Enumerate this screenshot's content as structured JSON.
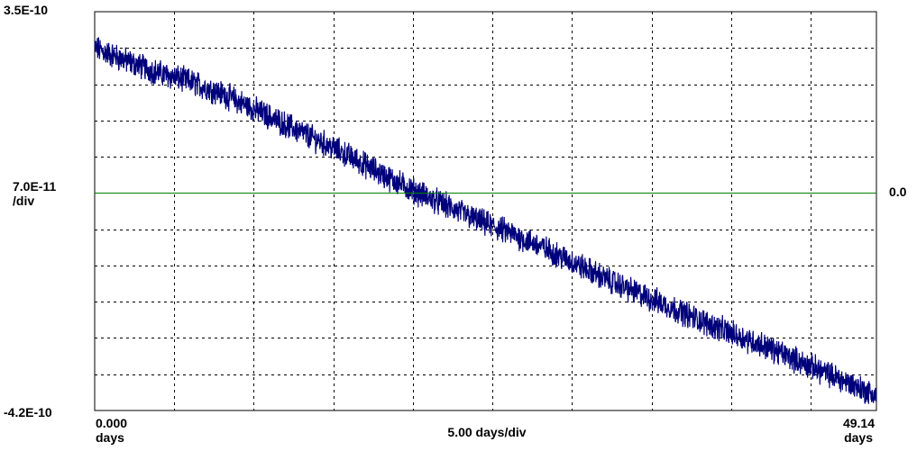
{
  "chart_data": {
    "type": "line",
    "y_axis": {
      "top_label": "3.5E-10",
      "scale_label": "7.0E-11",
      "scale_unit": "/div",
      "bottom_label": "-4.2E-10",
      "zero_label": "0.0",
      "ylim": [
        -4.2e-10,
        3.5e-10
      ],
      "per_div": 7e-11,
      "divisions": 11
    },
    "x_axis": {
      "start_value": "0.000",
      "start_unit": "days",
      "scale_label": "5.00 days/div",
      "end_value": "49.14",
      "end_unit": "days",
      "xlim": [
        0,
        49.14
      ],
      "per_div": 5.0
    },
    "grid": true,
    "grid_style": "dashed",
    "reference_line": {
      "y": 0.0,
      "color": "#008000"
    },
    "series": [
      {
        "color": "#00007b",
        "noise_band": 2.1e-11,
        "x": [
          0,
          2,
          4,
          6,
          8,
          10,
          12,
          14,
          16,
          18,
          20,
          22,
          24,
          26,
          28,
          30,
          32,
          34,
          36,
          38,
          40,
          42,
          44,
          46,
          48,
          49.14
        ],
        "y": [
          2.8e-10,
          2.55e-10,
          2.32e-10,
          2.15e-10,
          1.92e-10,
          1.62e-10,
          1.32e-10,
          1.02e-10,
          7.1e-11,
          3.7e-11,
          5e-12,
          -2.3e-11,
          -5.2e-11,
          -7.6e-11,
          -1.03e-10,
          -1.33e-10,
          -1.64e-10,
          -1.92e-10,
          -2.18e-10,
          -2.45e-10,
          -2.71e-10,
          -2.94e-10,
          -3.21e-10,
          -3.48e-10,
          -3.75e-10,
          -3.92e-10
        ]
      }
    ]
  }
}
